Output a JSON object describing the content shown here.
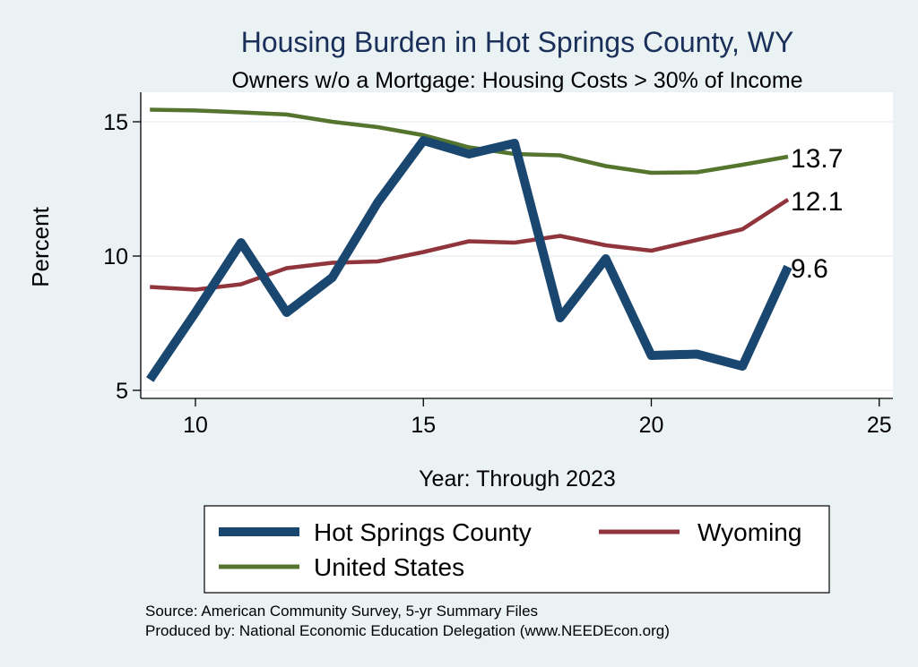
{
  "chart_data": {
    "type": "line",
    "title": "Housing Burden in Hot Springs County, WY",
    "subtitle": "Owners w/o a Mortgage: Housing Costs > 30% of Income",
    "xlabel": "Year: Through 2023",
    "ylabel": "Percent",
    "xlim": [
      8.8,
      25.3
    ],
    "ylim": [
      4.7,
      16.1
    ],
    "x_ticks": [
      10,
      15,
      20,
      25
    ],
    "y_ticks": [
      5,
      10,
      15
    ],
    "grid": true,
    "legend_position": "bottom",
    "x": [
      9,
      10,
      11,
      12,
      13,
      14,
      15,
      16,
      17,
      18,
      19,
      20,
      21,
      22,
      23
    ],
    "series": [
      {
        "name": "Hot Springs County",
        "color": "#1a476f",
        "values": [
          5.4,
          7.9,
          10.5,
          7.9,
          9.2,
          12.0,
          14.3,
          13.8,
          14.2,
          7.7,
          9.9,
          6.3,
          6.35,
          5.9,
          9.6
        ],
        "end_label": "9.6"
      },
      {
        "name": "Wyoming",
        "color": "#90353b",
        "values": [
          8.85,
          8.75,
          8.95,
          9.55,
          9.75,
          9.8,
          10.15,
          10.55,
          10.5,
          10.75,
          10.4,
          10.2,
          10.6,
          11.0,
          12.1
        ],
        "end_label": "12.1"
      },
      {
        "name": "United States",
        "color": "#55752f",
        "values": [
          15.45,
          15.42,
          15.35,
          15.27,
          15.0,
          14.8,
          14.5,
          14.05,
          13.8,
          13.75,
          13.35,
          13.1,
          13.12,
          13.4,
          13.7
        ],
        "end_label": "13.7"
      }
    ],
    "source": "Source: American Community Survey, 5-yr Summary Files",
    "producer": "Produced by: National Economic Education Delegation (www.NEEDEcon.org)"
  }
}
